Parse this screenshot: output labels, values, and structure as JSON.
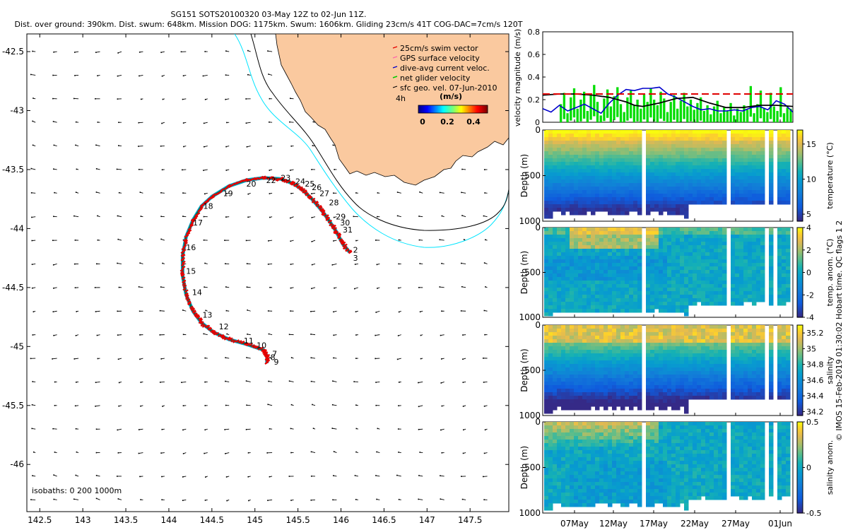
{
  "page_title": {
    "line1": "SG151 SOTS20100320 03-May 12Z to 02-Jun 11Z.",
    "line2": "Dist. over ground: 390km. Dist. swum: 648km. Mission DOG: 1175km. Swum: 1606km. Gliding 23cm/s 41T COG-DAC=7cm/s 120T"
  },
  "side_caption": "© IMOS 15-Feb-2019 01:30:02 Hobart time. QC flags 1  2",
  "colors": {
    "land": "#fac99f",
    "isobath_200": "#00e5ff",
    "isobath_1000": "#000000",
    "track_swim": "#e60000",
    "track_dac": "#0000cc",
    "track_net": "#00cc00",
    "speed_line": "#e00000"
  },
  "chart_data": [
    {
      "type": "map",
      "name": "glider track map",
      "xlim": [
        142.35,
        147.95
      ],
      "ylim": [
        -46.4,
        -42.35
      ],
      "x_ticks": [
        142.5,
        143,
        143.5,
        144,
        144.5,
        145,
        145.5,
        146,
        146.5,
        147,
        147.5
      ],
      "x_tick_labels": [
        "142.5",
        "143",
        "143.5",
        "144",
        "144.5",
        "145",
        "145.5",
        "146",
        "146.5",
        "147",
        "147.5"
      ],
      "y_ticks": [
        -42.5,
        -43,
        -43.5,
        -44,
        -44.5,
        -45,
        -45.5,
        -46
      ],
      "y_tick_labels": [
        "-42.5",
        "-43",
        "-43.5",
        "-44",
        "-44.5",
        "-45",
        "-45.5",
        "-46"
      ],
      "legend": [
        "25cm/s swim vector",
        "GPS surface velocity",
        "dive-avg current veloc.",
        "net glider velocity",
        "sfc geo. vel. 07-Jun-2010"
      ],
      "legend_placement": "top-right",
      "vector_key": {
        "label": "4h",
        "units": "(m/s)",
        "clim": [
          0,
          0.4
        ],
        "ticks": [
          "0",
          "0.2",
          "0.4"
        ]
      },
      "isobath_note": "isobaths: 0   200   1000m",
      "track": [
        [
          146.1,
          -44.2
        ],
        [
          146.02,
          -44.13
        ],
        [
          145.94,
          -44.02
        ],
        [
          145.85,
          -43.92
        ],
        [
          145.77,
          -43.84
        ],
        [
          145.65,
          -43.74
        ],
        [
          145.55,
          -43.67
        ],
        [
          145.45,
          -43.62
        ],
        [
          145.3,
          -43.58
        ],
        [
          145.1,
          -43.57
        ],
        [
          144.9,
          -43.59
        ],
        [
          144.7,
          -43.64
        ],
        [
          144.5,
          -43.73
        ],
        [
          144.38,
          -43.81
        ],
        [
          144.28,
          -43.93
        ],
        [
          144.2,
          -44.07
        ],
        [
          144.16,
          -44.23
        ],
        [
          144.16,
          -44.4
        ],
        [
          144.2,
          -44.56
        ],
        [
          144.28,
          -44.7
        ],
        [
          144.38,
          -44.8
        ],
        [
          144.52,
          -44.88
        ],
        [
          144.7,
          -44.94
        ],
        [
          144.9,
          -44.98
        ],
        [
          145.1,
          -45.03
        ],
        [
          145.14,
          -45.08
        ],
        [
          145.14,
          -45.14
        ]
      ],
      "day_labels": [
        {
          "label": "2",
          "lon": 146.14,
          "lat": -44.18
        },
        {
          "label": "3",
          "lon": 146.14,
          "lat": -44.25
        },
        {
          "label": "7",
          "lon": 145.2,
          "lat": -45.06
        },
        {
          "label": "8",
          "lon": 145.18,
          "lat": -45.09
        },
        {
          "label": "9",
          "lon": 145.22,
          "lat": -45.13
        },
        {
          "label": "10",
          "lon": 145.02,
          "lat": -44.99
        },
        {
          "label": "11",
          "lon": 144.87,
          "lat": -44.95
        },
        {
          "label": "12",
          "lon": 144.58,
          "lat": -44.83
        },
        {
          "label": "13",
          "lon": 144.39,
          "lat": -44.73
        },
        {
          "label": "14",
          "lon": 144.27,
          "lat": -44.54
        },
        {
          "label": "15",
          "lon": 144.2,
          "lat": -44.36
        },
        {
          "label": "16",
          "lon": 144.2,
          "lat": -44.16
        },
        {
          "label": "17",
          "lon": 144.28,
          "lat": -43.95
        },
        {
          "label": "18",
          "lon": 144.4,
          "lat": -43.81
        },
        {
          "label": "19",
          "lon": 144.63,
          "lat": -43.7
        },
        {
          "label": "20",
          "lon": 144.9,
          "lat": -43.62
        },
        {
          "label": "22",
          "lon": 145.13,
          "lat": -43.59
        },
        {
          "label": "23",
          "lon": 145.3,
          "lat": -43.57
        },
        {
          "label": "24",
          "lon": 145.47,
          "lat": -43.6
        },
        {
          "label": "25",
          "lon": 145.58,
          "lat": -43.62
        },
        {
          "label": "26",
          "lon": 145.66,
          "lat": -43.65
        },
        {
          "label": "27",
          "lon": 145.75,
          "lat": -43.7
        },
        {
          "label": "28",
          "lon": 145.86,
          "lat": -43.78
        },
        {
          "label": "29",
          "lon": 145.94,
          "lat": -43.9
        },
        {
          "label": "30",
          "lon": 145.99,
          "lat": -43.95
        },
        {
          "label": "31",
          "lon": 146.02,
          "lat": -44.01
        }
      ]
    },
    {
      "type": "line",
      "name": "velocity magnitude",
      "x_range_days": [
        0,
        30
      ],
      "ylim": [
        0,
        0.8
      ],
      "y_ticks": [
        0,
        0.2,
        0.4,
        0.6,
        0.8
      ],
      "y_tick_labels": [
        "0",
        "0.2",
        "0.4",
        "0.6",
        "0.8"
      ],
      "ylabel": "velocity magnitude (m/s)",
      "series": [
        {
          "name": "mission mean speed",
          "style": "dashed",
          "color": "#e00000",
          "y": [
            0.25,
            0.25
          ]
        },
        {
          "name": "black smoothed speed",
          "color": "#000000",
          "x": [
            0,
            2,
            4,
            6,
            8,
            10,
            11,
            12,
            14,
            16,
            18,
            20,
            22,
            24,
            26,
            28,
            30
          ],
          "y": [
            0.24,
            0.25,
            0.25,
            0.24,
            0.22,
            0.18,
            0.15,
            0.14,
            0.17,
            0.21,
            0.22,
            0.17,
            0.13,
            0.13,
            0.15,
            0.15,
            0.14
          ]
        },
        {
          "name": "blue dive-avg current",
          "color": "#0000cc",
          "x": [
            0,
            1,
            2,
            3,
            4,
            5,
            6,
            7,
            8,
            9,
            10,
            11,
            12,
            13,
            14,
            15,
            16,
            17,
            18,
            19,
            20,
            21,
            22,
            23,
            24,
            25,
            26,
            27,
            28,
            29,
            30
          ],
          "y": [
            0.12,
            0.09,
            0.15,
            0.1,
            0.13,
            0.16,
            0.12,
            0.08,
            0.17,
            0.24,
            0.29,
            0.28,
            0.3,
            0.3,
            0.31,
            0.25,
            0.22,
            0.18,
            0.14,
            0.11,
            0.12,
            0.1,
            0.1,
            0.11,
            0.1,
            0.13,
            0.14,
            0.11,
            0.19,
            0.16,
            0.09
          ]
        },
        {
          "name": "green net glider velocity",
          "color": "#00dd00",
          "style": "bars",
          "y": [
            0.16,
            0.26,
            0.08,
            0.22,
            0.3,
            0.12,
            0.2,
            0.27,
            0.1,
            0.24,
            0.33,
            0.18,
            0.06,
            0.21,
            0.29,
            0.14,
            0.23,
            0.31,
            0.16,
            0.09,
            0.22,
            0.28,
            0.15,
            0.2,
            0.12,
            0.25,
            0.18,
            0.3,
            0.2,
            0.15,
            0.27,
            0.21,
            0.09,
            0.18,
            0.24,
            0.12,
            0.19,
            0.26,
            0.14,
            0.2,
            0.11,
            0.17,
            0.22,
            0.1,
            0.15,
            0.07,
            0.14,
            0.19,
            0.08,
            0.13,
            0.1,
            0.17,
            0.06,
            0.12,
            0.09,
            0.15,
            0.11,
            0.32,
            0.08,
            0.16,
            0.28,
            0.12,
            0.09,
            0.26,
            0.14,
            0.1,
            0.31,
            0.08,
            0.13,
            0.12
          ]
        }
      ]
    },
    {
      "type": "heatmap",
      "name": "temperature section",
      "ylabel": "Depth (m)",
      "ylim": [
        1000,
        0
      ],
      "y_tick_labels": [
        "0",
        "500",
        "1000"
      ],
      "colorbar_label": "temperature (°C)",
      "clim": [
        4,
        17
      ],
      "colorbar_ticks": [
        "5",
        "10",
        "15"
      ]
    },
    {
      "type": "heatmap",
      "name": "temperature anomaly section",
      "ylabel": "Depth (m)",
      "ylim": [
        1000,
        0
      ],
      "y_tick_labels": [
        "0",
        "500",
        "1000"
      ],
      "colorbar_label": "temp. anom. (°C)",
      "clim": [
        -4,
        4
      ],
      "colorbar_ticks": [
        "4",
        "2",
        "0",
        "-2",
        "-4"
      ]
    },
    {
      "type": "heatmap",
      "name": "salinity section",
      "ylabel": "Depth (m)",
      "ylim": [
        1000,
        0
      ],
      "y_tick_labels": [
        "0",
        "500",
        "1000"
      ],
      "colorbar_label": "salinity",
      "clim": [
        34.15,
        35.3
      ],
      "colorbar_ticks": [
        "35.2",
        "35",
        "34.8",
        "34.6",
        "34.4",
        "34.2"
      ]
    },
    {
      "type": "heatmap",
      "name": "salinity anomaly section",
      "ylabel": "Depth (m)",
      "ylim": [
        1000,
        0
      ],
      "y_tick_labels": [
        "0",
        "500",
        "1000"
      ],
      "colorbar_label": "salinity anom.",
      "clim": [
        -0.5,
        0.5
      ],
      "colorbar_ticks": [
        "0.5",
        "0",
        "-0.5"
      ],
      "x_tick_labels": [
        "07May",
        "12May",
        "17May",
        "22May",
        "27May",
        "01Jun"
      ]
    }
  ]
}
